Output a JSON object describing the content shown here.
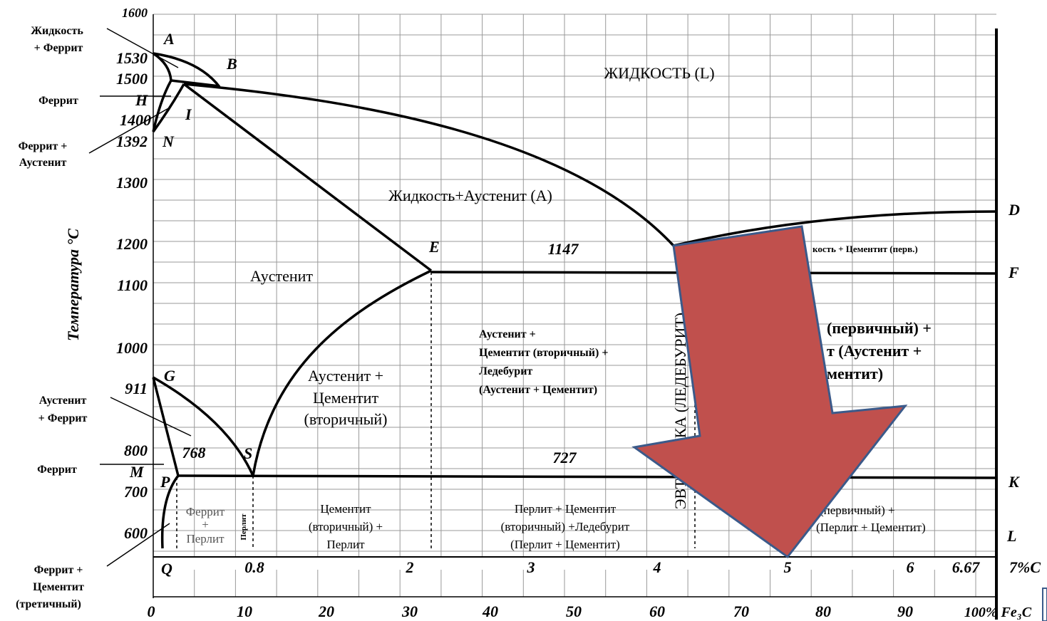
{
  "diagram": {
    "y_title": "Температура °С",
    "temperatures": [
      "1600",
      "1530",
      "1500",
      "1400",
      "1392",
      "1300",
      "1200",
      "1100",
      "1000",
      "911",
      "800",
      "700",
      "600"
    ],
    "carbon": [
      "0.8",
      "2",
      "3",
      "4",
      "5",
      "6",
      "6.67",
      "7%C"
    ],
    "cementite": [
      "0",
      "10",
      "20",
      "30",
      "40",
      "50",
      "60",
      "70",
      "80",
      "90",
      "100% Fe₃C"
    ],
    "points": [
      "A",
      "B",
      "H",
      "I",
      "N",
      "E",
      "G",
      "S",
      "M",
      "P",
      "Q",
      "D",
      "F",
      "K",
      "L"
    ],
    "inline_numbers": [
      "1147",
      "727",
      "768"
    ],
    "left_labels": [
      [
        "Жидкость",
        "+ Феррит"
      ],
      [
        "Феррит"
      ],
      [
        "Феррит +",
        "Аустенит"
      ],
      [
        "Аустенит",
        "+ Феррит"
      ],
      [
        "Феррит"
      ],
      [
        "Феррит +",
        "Цементит",
        "(третичный)"
      ]
    ],
    "regions": [
      [
        "ЖИДКОСТЬ (L)"
      ],
      [
        "Жидкость+Аустенит (А)"
      ],
      [
        "Аустенит"
      ],
      [
        "Аустенит +",
        "Цементит (вторичный) +",
        "Ледебурит",
        "(Аустенит + Цементит)"
      ],
      [
        "Аустенит +",
        "Цементит",
        "(вторичный)"
      ],
      [
        "Феррит",
        "+",
        "Перлит"
      ],
      [
        "Перлит"
      ],
      [
        "Цементит",
        "(вторичный) +",
        "Перлит"
      ],
      [
        "Перлит + Цементит",
        "(вторичный) +Ледебурит",
        "(Перлит + Цементит)"
      ],
      [
        "ЭВТЕКТИКА (ЛЕДЕБУРИТ)"
      ],
      [
        "кость + Цементит (перв.)"
      ],
      [
        "(первичный) +",
        "т (Аустенит +",
        "ментит)"
      ],
      [
        "(первичный) +",
        "(Перлит + Цементит)"
      ]
    ]
  }
}
